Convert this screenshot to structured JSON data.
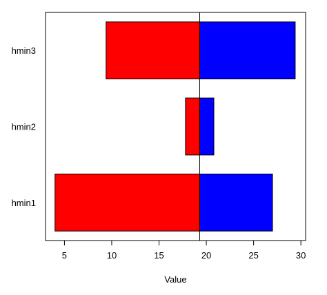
{
  "chart_data": {
    "type": "bar",
    "orientation": "horizontal",
    "title": "",
    "xlabel": "Value",
    "ylabel": "",
    "xlim": [
      3.0,
      30.5
    ],
    "reference_line": 19.3,
    "categories": [
      "hmin1",
      "hmin2",
      "hmin3"
    ],
    "x_ticks": [
      5,
      10,
      15,
      20,
      25,
      30
    ],
    "series": [
      {
        "color": "#ff0000",
        "start": [
          4.0,
          17.8,
          9.4
        ],
        "end": [
          19.3,
          19.3,
          19.3
        ]
      },
      {
        "color": "#0000ff",
        "start": [
          19.3,
          19.3,
          19.3
        ],
        "end": [
          27.0,
          20.8,
          29.4
        ]
      }
    ],
    "grid": false,
    "legend": "none"
  }
}
